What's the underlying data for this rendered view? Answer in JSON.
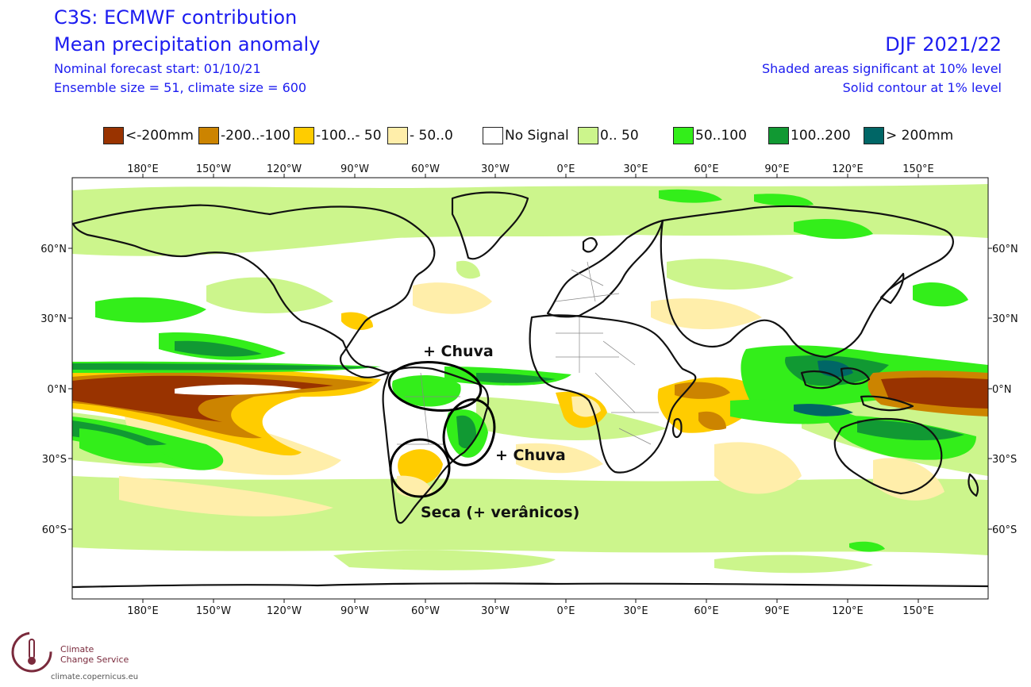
{
  "header": {
    "title": "C3S: ECMWF contribution",
    "subtitle": "Mean precipitation anomaly",
    "forecast_start": "Nominal forecast start: 01/10/21",
    "ensemble": "Ensemble size = 51, climate size = 600",
    "season": "DJF 2021/22",
    "significance": "Shaded areas significant at 10% level",
    "contour": "Solid contour at 1% level"
  },
  "legend": [
    {
      "label": "<-200mm",
      "color": "#993300"
    },
    {
      "label": "-200..-100",
      "color": "#cc8400"
    },
    {
      "label": "-100..- 50",
      "color": "#ffcc00"
    },
    {
      "label": "- 50..0",
      "color": "#ffeeaa"
    },
    {
      "label": "No Signal",
      "color": "#ffffff"
    },
    {
      "label": "0.. 50",
      "color": "#ccf58c"
    },
    {
      "label": "50..100",
      "color": "#33ee1a"
    },
    {
      "label": "100..200",
      "color": "#119933"
    },
    {
      "label": "> 200mm",
      "color": "#006666"
    }
  ],
  "axes": {
    "lon_ticks": [
      "180°E",
      "150°W",
      "120°W",
      "90°W",
      "60°W",
      "30°W",
      "0°E",
      "30°E",
      "60°E",
      "90°E",
      "120°E",
      "150°E"
    ],
    "lat_ticks": [
      "60°N",
      "30°N",
      "0°N",
      "30°S",
      "60°S"
    ]
  },
  "annotations": {
    "amazon": "+ Chuva",
    "southeast_brazil": "+ Chuva",
    "south_south_america": "Seca (+ verânicos)"
  },
  "logo": {
    "line1": "Climate",
    "line2": "Change Service",
    "url": "climate.copernicus.eu"
  }
}
